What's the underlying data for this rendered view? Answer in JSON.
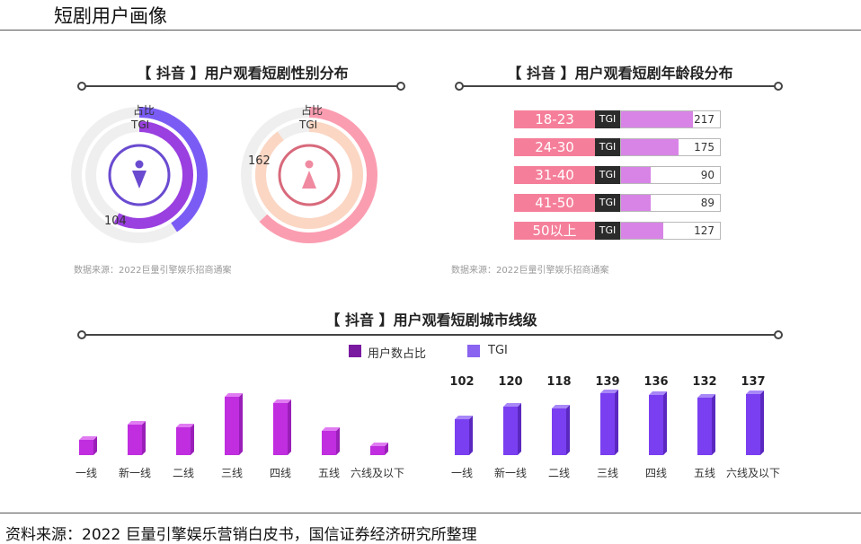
{
  "page_title": "短剧用户画像",
  "footer": "资料来源：2022 巨量引擎娱乐营销白皮书，国信证券经济研究所整理",
  "colors": {
    "male_ring": "#7a5cf5",
    "male_tgi_ring": "#9a3fe0",
    "female_ring": "#fb9db1",
    "female_tgi_ring": "#fbd6c3",
    "age_label_bg": "#f57f9a",
    "age_fill": "#d884e6",
    "share_bar": "#c02ee0",
    "tgi_bar": "#7a3ff0"
  },
  "gender_panel": {
    "title": "【 抖音 】用户观看短剧性别分布",
    "ring_label_share": "占比",
    "ring_label_tgi": "TGI",
    "source": "数据来源：2022巨量引擎娱乐招商通案",
    "male_icon": "male-icon",
    "female_icon": "female-icon"
  },
  "age_panel": {
    "title": "【 抖音 】用户观看短剧年龄段分布",
    "tgi_tag": "TGI",
    "source": "数据来源：2022巨量引擎娱乐招商通案"
  },
  "city_panel": {
    "title": "【 抖音 】用户观看短剧城市线级",
    "legend_share": "用户数占比",
    "legend_tgi": "TGI"
  },
  "chart_data": [
    {
      "type": "pie",
      "title": "【 抖音 】用户观看短剧性别分布",
      "series": [
        {
          "name": "占比",
          "categories": [
            "男",
            "女"
          ],
          "values": [
            0.37,
            0.63
          ]
        },
        {
          "name": "TGI",
          "categories": [
            "男",
            "女"
          ],
          "values": [
            104,
            162
          ]
        }
      ],
      "labels": {
        "male_tgi": "104",
        "female_tgi": "162"
      }
    },
    {
      "type": "bar",
      "title": "【 抖音 】用户观看短剧年龄段分布",
      "categories": [
        "18-23",
        "24-30",
        "31-40",
        "41-50",
        "50以上"
      ],
      "values": [
        217,
        175,
        90,
        89,
        127
      ],
      "value_labels": [
        "217",
        "175",
        "90",
        "89",
        "127"
      ],
      "ylim": [
        0,
        300
      ]
    },
    {
      "type": "bar",
      "title": "【 抖音 】用户观看短剧城市线级",
      "categories": [
        "一线",
        "新一线",
        "二线",
        "三线",
        "四线",
        "五线",
        "六线及以下"
      ],
      "series": [
        {
          "name": "用户数占比",
          "values": [
            5,
            10,
            9,
            19,
            17,
            8,
            3
          ]
        },
        {
          "name": "TGI",
          "values": [
            102,
            120,
            118,
            139,
            136,
            132,
            137
          ]
        }
      ],
      "tgi_labels": [
        "102",
        "120",
        "118",
        "139",
        "136",
        "132",
        "137"
      ]
    }
  ]
}
